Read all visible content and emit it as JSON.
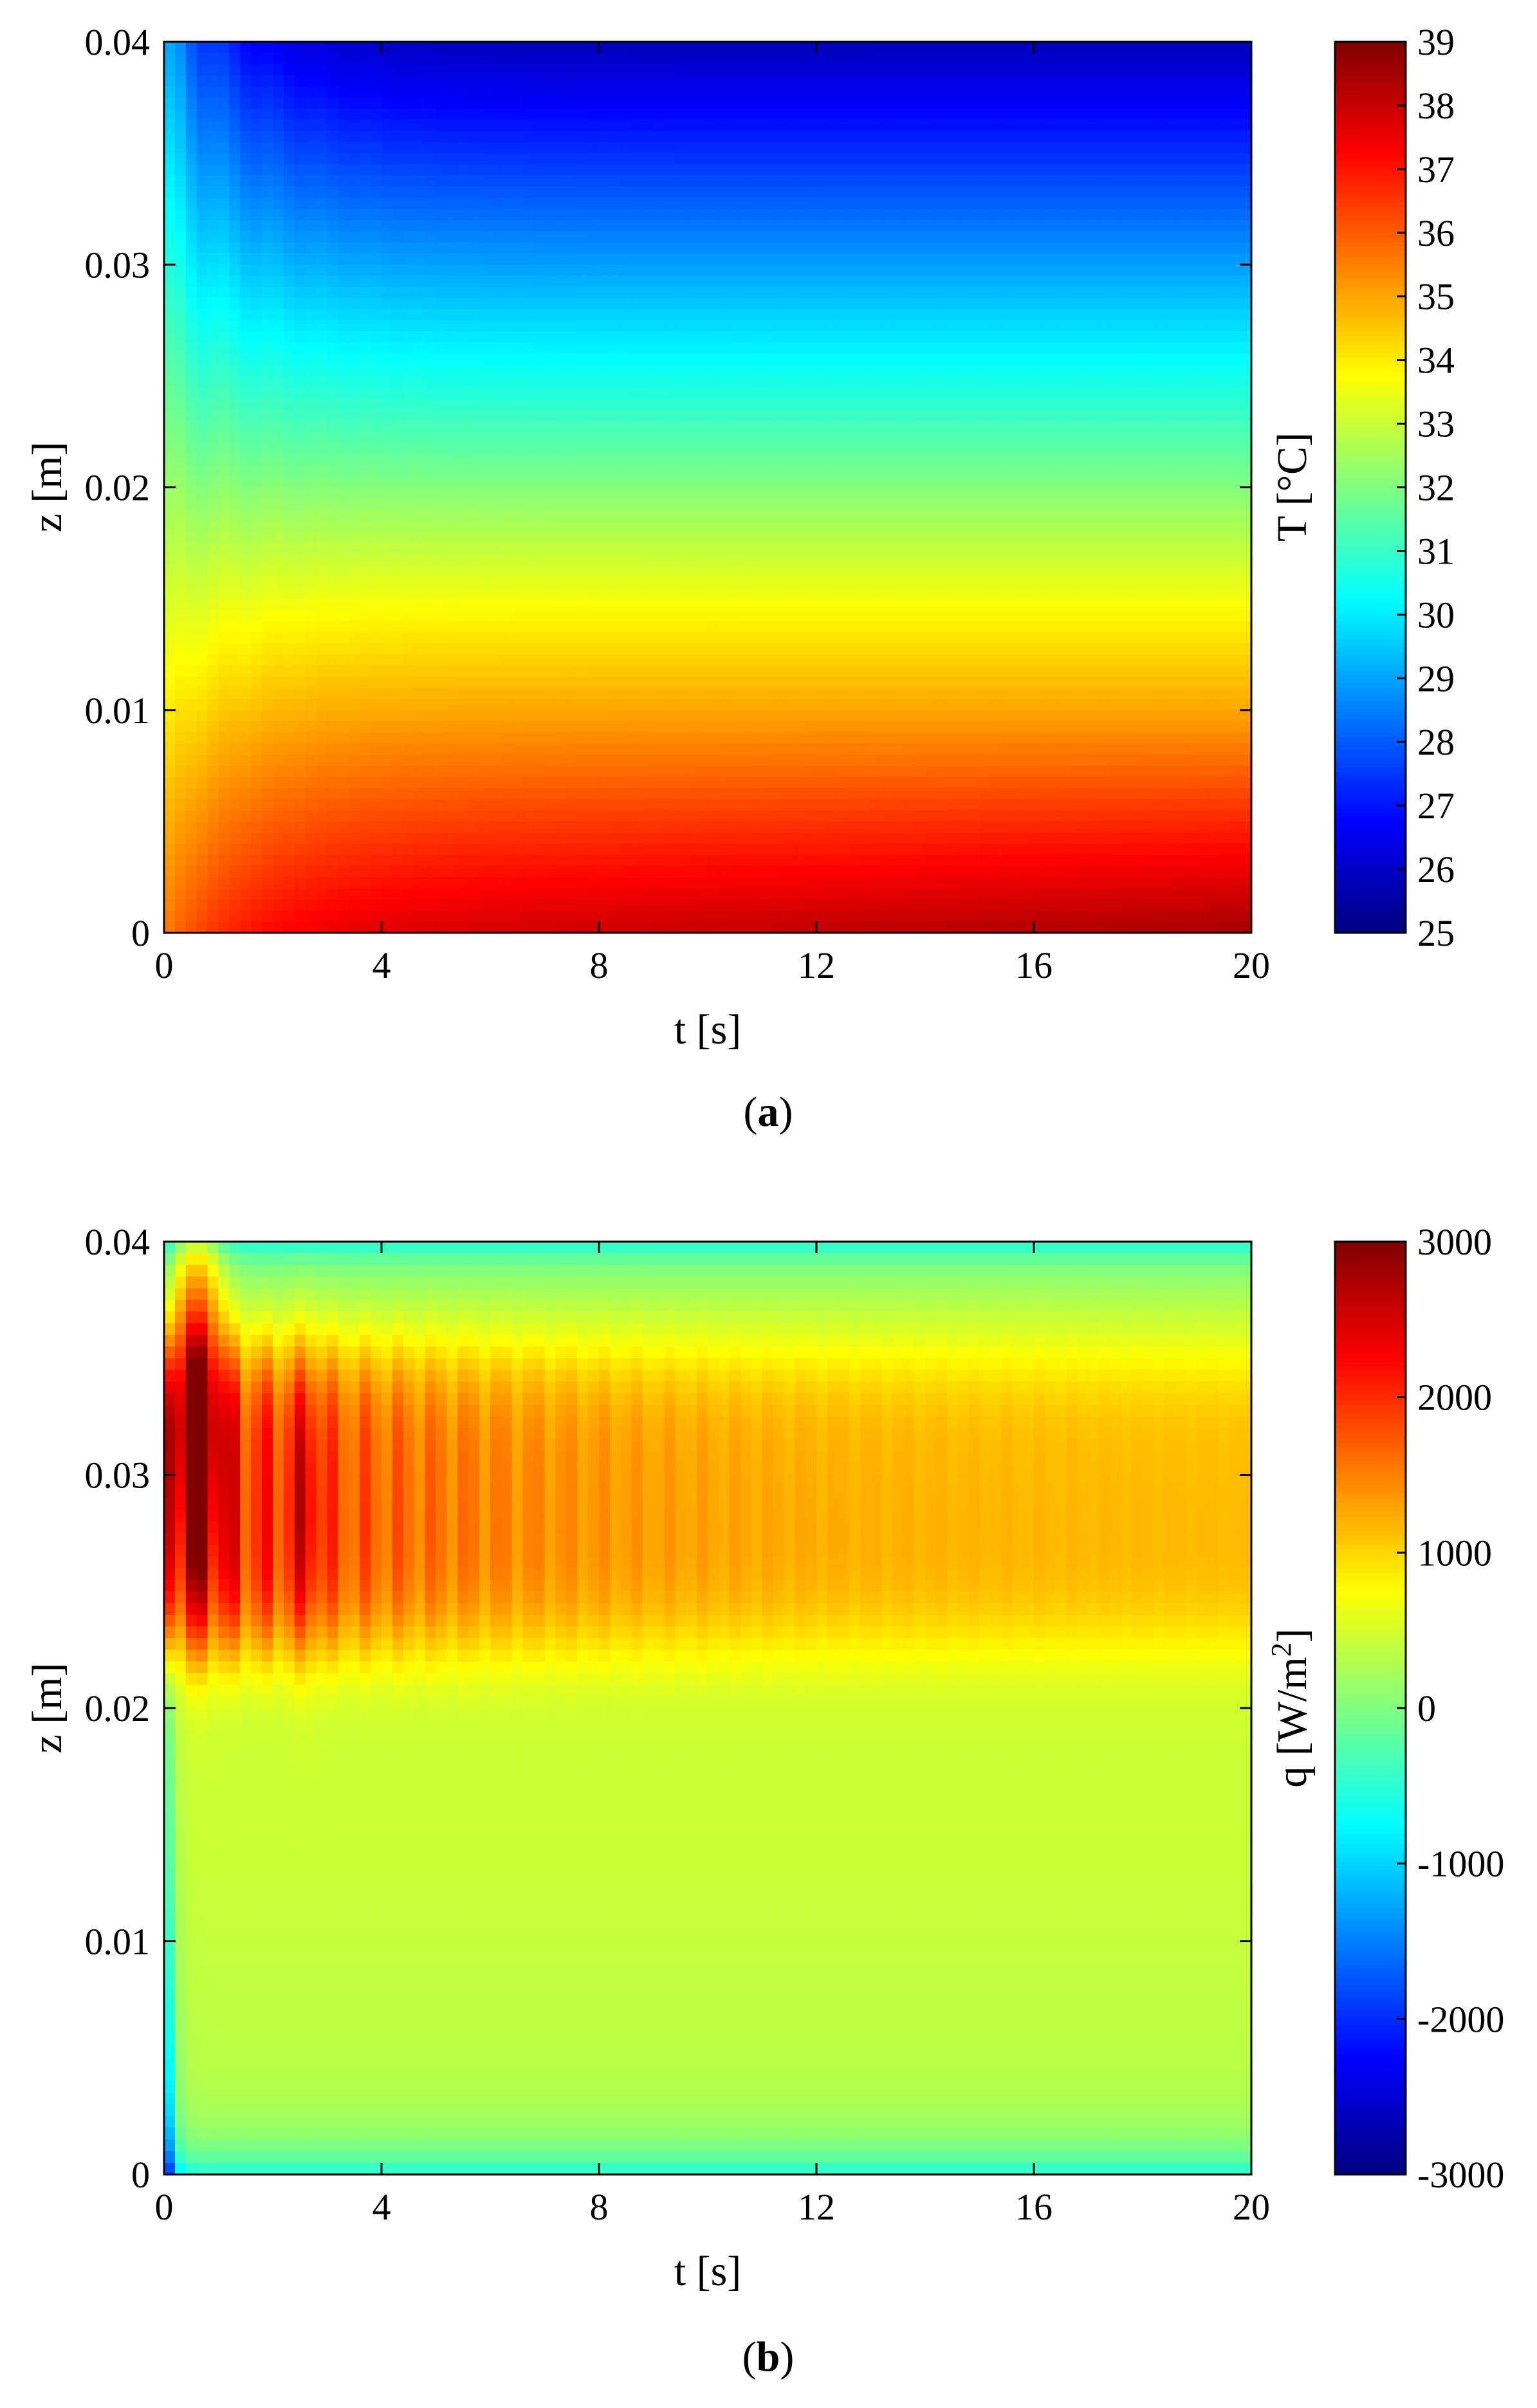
{
  "chart_data": [
    {
      "type": "heatmap",
      "panel_label": "a",
      "xlabel": "t [s]",
      "ylabel": "z [m]",
      "xlim": [
        0,
        20
      ],
      "ylim": [
        0,
        0.04
      ],
      "x_ticks": [
        "0",
        "4",
        "8",
        "12",
        "16",
        "20"
      ],
      "y_ticks": [
        "0",
        "0.01",
        "0.02",
        "0.03",
        "0.04"
      ],
      "colorbar": {
        "label": "T [°C]",
        "label_sup": "",
        "label_suffix": "",
        "range": [
          25,
          39
        ],
        "ticks": [
          "25",
          "26",
          "27",
          "28",
          "29",
          "30",
          "31",
          "32",
          "33",
          "34",
          "35",
          "36",
          "37",
          "38",
          "39"
        ],
        "colormap": "jet"
      },
      "description_values": {
        "t": [
          0,
          1,
          2,
          4,
          8,
          12,
          16,
          20
        ],
        "z": [
          0,
          0.005,
          0.01,
          0.015,
          0.02,
          0.025,
          0.03,
          0.035,
          0.04
        ],
        "T_at_t0": [
          35.5,
          34.5,
          33.5,
          32.5,
          31.5,
          30.8,
          30.2,
          29.6,
          29.0
        ],
        "T_steady": [
          37.5,
          36.5,
          35.2,
          34.0,
          32.3,
          30.8,
          29.0,
          27.0,
          25.8
        ]
      }
    },
    {
      "type": "heatmap",
      "panel_label": "b",
      "xlabel": "t [s]",
      "ylabel": "z [m]",
      "xlim": [
        0,
        20
      ],
      "ylim": [
        0,
        0.04
      ],
      "x_ticks": [
        "0",
        "4",
        "8",
        "12",
        "16",
        "20"
      ],
      "y_ticks": [
        "0",
        "0.01",
        "0.02",
        "0.03",
        "0.04"
      ],
      "colorbar": {
        "label": "q [W/m",
        "label_sup": "2",
        "label_suffix": "]",
        "range": [
          -3000,
          3000
        ],
        "ticks": [
          "-3000",
          "-2000",
          "-1000",
          "0",
          "1000",
          "2000",
          "3000"
        ],
        "colormap": "jet"
      },
      "description_values": {
        "peak_q_near_t0_z0.033": 2800,
        "band_z_range": [
          0.022,
          0.036
        ],
        "band_q_late": 1000,
        "background_q": 300,
        "top_edge_q": -700,
        "bottom_left_q": -3000
      }
    }
  ]
}
